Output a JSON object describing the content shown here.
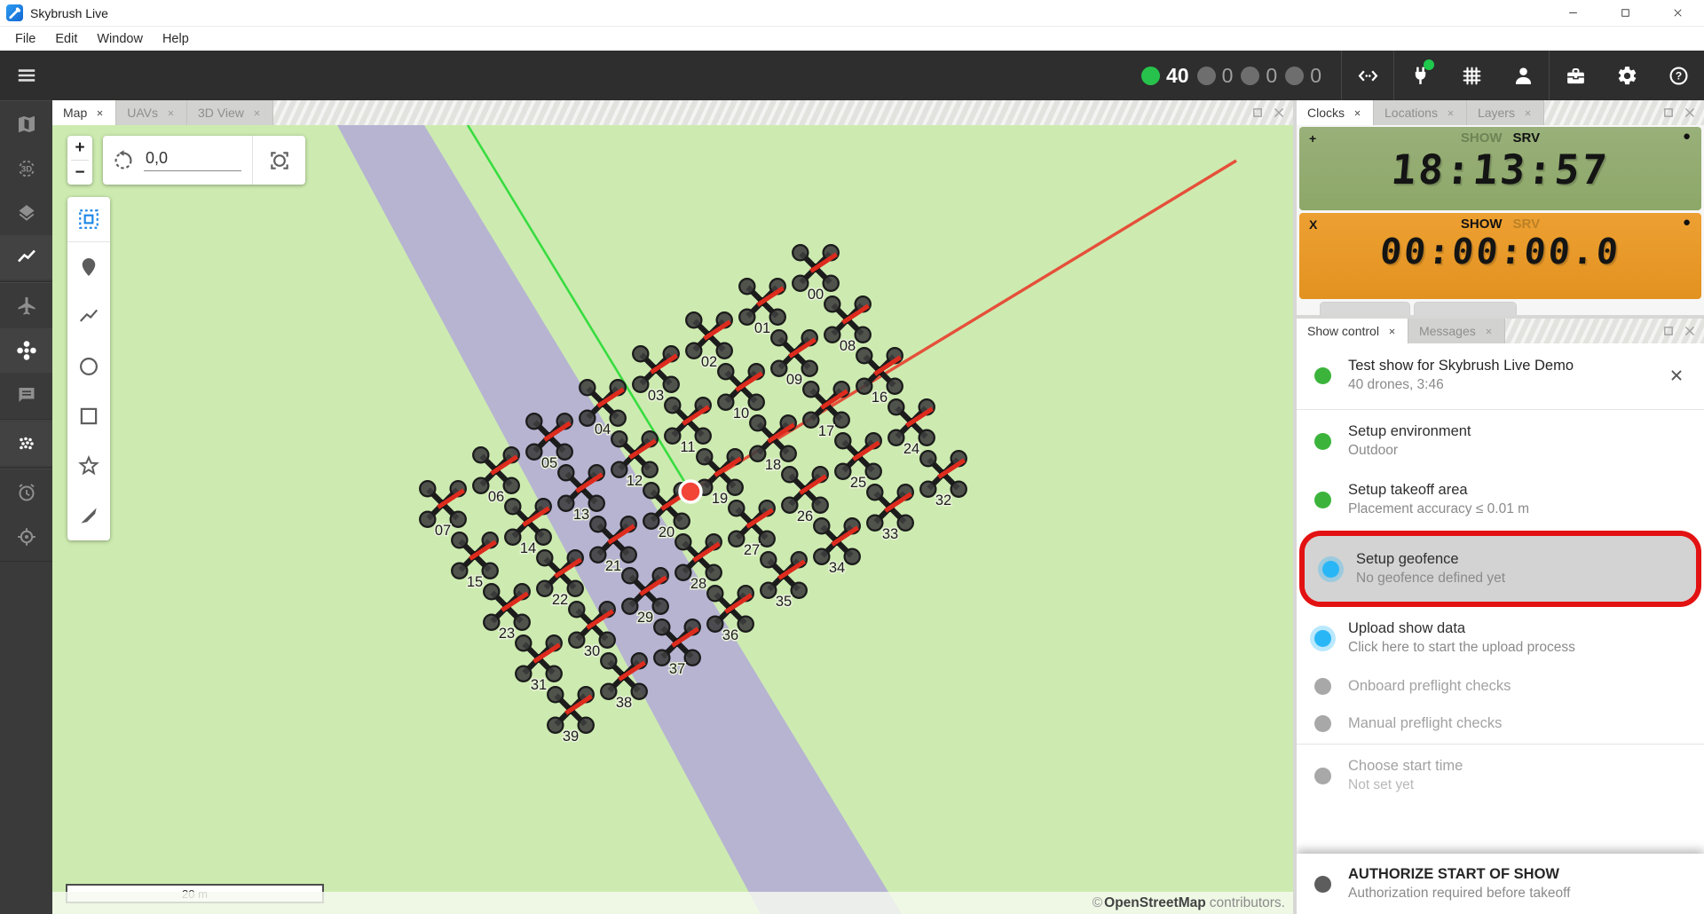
{
  "window": {
    "title": "Skybrush Live",
    "controls": [
      {
        "name": "minimize",
        "icon": "win-min"
      },
      {
        "name": "maximize",
        "icon": "win-max"
      },
      {
        "name": "close",
        "icon": "win-close"
      }
    ]
  },
  "menubar": {
    "items": [
      "File",
      "Edit",
      "Window",
      "Help"
    ]
  },
  "appbar": {
    "counters": [
      {
        "count": "40",
        "status": "active",
        "color": "#27c24c"
      },
      {
        "count": "0",
        "status": "inactive",
        "color": "#6e6e6e"
      },
      {
        "count": "0",
        "status": "inactive",
        "color": "#6e6e6e"
      },
      {
        "count": "0",
        "status": "inactive",
        "color": "#6e6e6e"
      }
    ],
    "buttons": [
      {
        "name": "code-snippets",
        "icon": "code",
        "group": 1
      },
      {
        "name": "connections",
        "icon": "plug",
        "badge": "#1fc94c",
        "group": 2
      },
      {
        "name": "mesh-network",
        "icon": "mesh",
        "group": 2
      },
      {
        "name": "account",
        "icon": "person",
        "group": 2
      },
      {
        "name": "toolbox",
        "icon": "toolbox",
        "group": 3
      },
      {
        "name": "settings",
        "icon": "gear",
        "group": 3
      },
      {
        "name": "help",
        "icon": "help",
        "group": 3
      }
    ]
  },
  "sidebar": {
    "groups": [
      [
        {
          "name": "map",
          "icon": "map",
          "active": false
        },
        {
          "name": "three-d-view",
          "icon": "view3d",
          "active": false
        },
        {
          "name": "layer-list",
          "icon": "layers",
          "active": false
        },
        {
          "name": "datasets",
          "icon": "chart",
          "active": true
        }
      ],
      [
        {
          "name": "uav-list",
          "icon": "uav",
          "active": false
        },
        {
          "name": "show-control-page",
          "icon": "droneplus",
          "active": true
        },
        {
          "name": "messages",
          "icon": "chat",
          "active": false
        }
      ],
      [
        {
          "name": "light-control",
          "icon": "dots",
          "active": true
        }
      ],
      [
        {
          "name": "clock-list",
          "icon": "alarm",
          "active": false
        },
        {
          "name": "location",
          "icon": "crosshair",
          "active": false
        }
      ]
    ]
  },
  "map_dock": {
    "tabs": [
      {
        "label": "Map",
        "active": true
      },
      {
        "label": "UAVs",
        "active": false
      },
      {
        "label": "3D View",
        "active": false
      }
    ],
    "controls": {
      "zoom_in": "+",
      "zoom_out": "−",
      "rotation": "0,0"
    },
    "scale_bar": "20 m",
    "attribution": {
      "prefix": "©",
      "strong": "OpenStreetMap",
      "suffix": "contributors."
    },
    "drones": {
      "ids": [
        "00",
        "01",
        "02",
        "03",
        "04",
        "05",
        "06",
        "07",
        "08",
        "09",
        "10",
        "11",
        "12",
        "13",
        "14",
        "15",
        "16",
        "17",
        "18",
        "19",
        "20",
        "21",
        "22",
        "23",
        "24",
        "25",
        "26",
        "27",
        "28",
        "29",
        "30",
        "31",
        "32",
        "33",
        "34",
        "35",
        "36",
        "37",
        "38",
        "39"
      ]
    }
  },
  "clocks_dock": {
    "tabs": [
      {
        "label": "Clocks",
        "active": true
      },
      {
        "label": "Locations",
        "active": false
      },
      {
        "label": "Layers",
        "active": false
      }
    ],
    "clocks": [
      {
        "prefix": "+",
        "labels": [
          {
            "text": "SHOW",
            "dim": true
          },
          {
            "text": "SRV",
            "dim": false
          }
        ],
        "time": "18:13:57",
        "theme": "green"
      },
      {
        "prefix": "X",
        "labels": [
          {
            "text": "SHOW",
            "dim": false
          },
          {
            "text": "SRV",
            "dim": true
          }
        ],
        "time": "00:00:00.0",
        "theme": "orange"
      }
    ]
  },
  "show_dock": {
    "tabs": [
      {
        "label": "Show control",
        "active": true
      },
      {
        "label": "Messages",
        "active": false
      }
    ],
    "show_item": {
      "title": "Test show for Skybrush Live Demo",
      "subtitle": "40 drones, 3:46"
    },
    "steps": [
      {
        "title": "Setup environment",
        "subtitle": "Outdoor",
        "dot": "green"
      },
      {
        "title": "Setup takeoff area",
        "subtitle": "Placement accuracy ≤ 0.01 m",
        "dot": "green"
      },
      {
        "title": "Setup geofence",
        "subtitle": "No geofence defined yet",
        "dot": "blue",
        "highlighted": true
      },
      {
        "title": "Upload show data",
        "subtitle": "Click here to start the upload process",
        "dot": "blue"
      },
      {
        "title": "Onboard preflight checks",
        "dot": "gray",
        "disabled": true
      },
      {
        "title": "Manual preflight checks",
        "dot": "gray",
        "disabled": true
      },
      {
        "divider": true
      },
      {
        "title": "Choose start time",
        "subtitle": "Not set yet",
        "dot": "gray",
        "disabled": true
      }
    ],
    "authorize": {
      "title": "AUTHORIZE START OF SHOW",
      "subtitle": "Authorization required before takeoff",
      "dot": "dark"
    }
  }
}
